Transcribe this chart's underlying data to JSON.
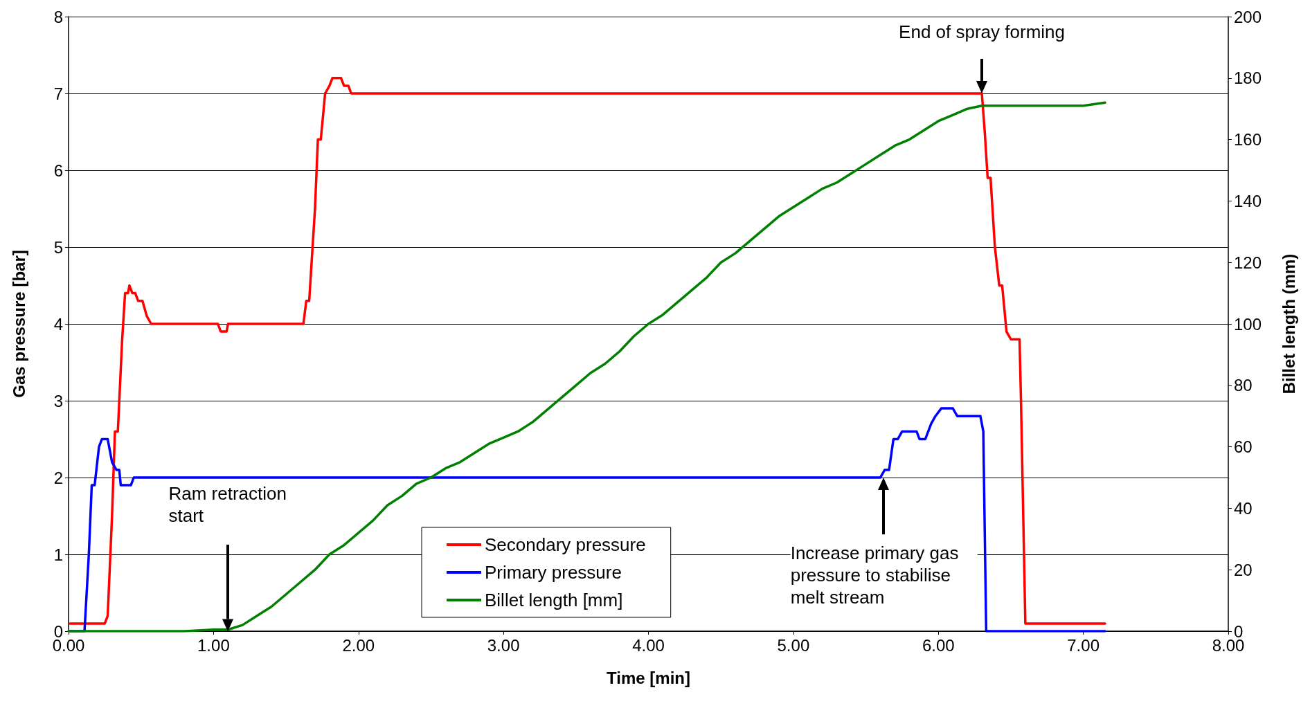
{
  "chart_data": {
    "type": "line",
    "xlabel": "Time [min]",
    "ylabel": "Gas pressure [bar]",
    "y2label": "Billet length (mm)",
    "xlim": [
      0,
      8
    ],
    "xticks": [
      {
        "value": 0,
        "label": "0.00"
      },
      {
        "value": 1,
        "label": "1.00"
      },
      {
        "value": 2,
        "label": "2.00"
      },
      {
        "value": 3,
        "label": "3.00"
      },
      {
        "value": 4,
        "label": "4.00"
      },
      {
        "value": 5,
        "label": "5.00"
      },
      {
        "value": 6,
        "label": "6.00"
      },
      {
        "value": 7,
        "label": "7.00"
      },
      {
        "value": 8,
        "label": "8.00"
      }
    ],
    "ylim": [
      0,
      8
    ],
    "yticks": [
      0,
      1,
      2,
      3,
      4,
      5,
      6,
      7,
      8
    ],
    "y2lim": [
      0,
      200
    ],
    "y2ticks": [
      0,
      20,
      40,
      60,
      80,
      100,
      120,
      140,
      160,
      180,
      200
    ],
    "grid": "y",
    "legend": "bottom",
    "marker": "none",
    "line_style": "solid",
    "series": [
      {
        "name": "Secondary pressure",
        "color": "#ff0000",
        "x": [
          0.01,
          0.25,
          0.27,
          0.3,
          0.32,
          0.34,
          0.37,
          0.39,
          0.41,
          0.42,
          0.44,
          0.46,
          0.48,
          0.51,
          0.54,
          0.57,
          1.03,
          1.05,
          1.09,
          1.1,
          1.62,
          1.64,
          1.66,
          1.7,
          1.72,
          1.74,
          1.77,
          1.8,
          1.82,
          1.88,
          1.9,
          1.93,
          1.95,
          6.3,
          6.32,
          6.34,
          6.36,
          6.39,
          6.42,
          6.44,
          6.47,
          6.5,
          6.56,
          6.57,
          6.6,
          7.15
        ],
        "values": [
          0.1,
          0.1,
          0.2,
          1.5,
          2.6,
          2.6,
          3.8,
          4.4,
          4.4,
          4.5,
          4.4,
          4.4,
          4.3,
          4.3,
          4.1,
          4.0,
          4.0,
          3.9,
          3.9,
          4.0,
          4.0,
          4.3,
          4.3,
          5.5,
          6.4,
          6.4,
          7.0,
          7.1,
          7.2,
          7.2,
          7.1,
          7.1,
          7.0,
          7.0,
          6.5,
          5.9,
          5.9,
          5.0,
          4.5,
          4.5,
          3.9,
          3.8,
          3.8,
          3.0,
          0.1,
          0.1
        ]
      },
      {
        "name": "Primary pressure",
        "color": "#0000ff",
        "x": [
          0.01,
          0.11,
          0.14,
          0.16,
          0.18,
          0.21,
          0.23,
          0.27,
          0.3,
          0.33,
          0.35,
          0.36,
          0.43,
          0.45,
          5.6,
          5.63,
          5.66,
          5.69,
          5.72,
          5.75,
          5.85,
          5.87,
          5.91,
          5.95,
          5.98,
          6.02,
          6.1,
          6.13,
          6.29,
          6.31,
          6.33,
          7.15
        ],
        "values": [
          0,
          0,
          1.0,
          1.9,
          1.9,
          2.4,
          2.5,
          2.5,
          2.2,
          2.1,
          2.1,
          1.9,
          1.9,
          2.0,
          2.0,
          2.1,
          2.1,
          2.5,
          2.5,
          2.6,
          2.6,
          2.5,
          2.5,
          2.7,
          2.8,
          2.9,
          2.9,
          2.8,
          2.8,
          2.6,
          0,
          0
        ]
      },
      {
        "name": "Billet length [mm]",
        "color": "#008000",
        "axis": "y2",
        "x": [
          0,
          0.8,
          1.0,
          1.1,
          1.2,
          1.3,
          1.4,
          1.5,
          1.6,
          1.7,
          1.8,
          1.9,
          2.0,
          2.1,
          2.2,
          2.3,
          2.4,
          2.5,
          2.6,
          2.7,
          2.8,
          2.9,
          3.0,
          3.1,
          3.2,
          3.3,
          3.4,
          3.5,
          3.6,
          3.7,
          3.8,
          3.9,
          4.0,
          4.1,
          4.2,
          4.3,
          4.4,
          4.5,
          4.6,
          4.7,
          4.8,
          4.9,
          5.0,
          5.1,
          5.2,
          5.3,
          5.4,
          5.5,
          5.6,
          5.7,
          5.8,
          5.9,
          6.0,
          6.1,
          6.2,
          6.3,
          6.5,
          7.0,
          7.15
        ],
        "values": [
          0,
          0,
          0.5,
          0.5,
          2,
          5,
          8,
          12,
          16,
          20,
          25,
          28,
          32,
          36,
          41,
          44,
          48,
          50,
          53,
          55,
          58,
          61,
          63,
          65,
          68,
          72,
          76,
          80,
          84,
          87,
          91,
          96,
          100,
          103,
          107,
          111,
          115,
          120,
          123,
          127,
          131,
          135,
          138,
          141,
          144,
          146,
          149,
          152,
          155,
          158,
          160,
          163,
          166,
          168,
          170,
          171,
          171,
          171,
          172
        ]
      }
    ],
    "annotations": [
      {
        "text": "End of spray forming",
        "x": 6.3,
        "y": 7.0
      },
      "Ram retraction start",
      "Increase primary gas pressure to stabilise melt stream"
    ]
  }
}
